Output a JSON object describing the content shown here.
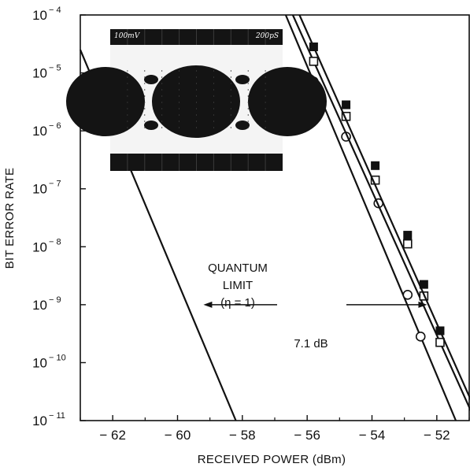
{
  "chart_data": {
    "type": "line",
    "xlabel": "RECEIVED POWER (dBm)",
    "ylabel": "BIT ERROR RATE",
    "xlim": [
      -63,
      -51
    ],
    "ylim_log10": [
      -11,
      -4
    ],
    "y_scale": "log",
    "x_ticks": [
      "− 62",
      "− 60",
      "− 58",
      "− 56",
      "− 54",
      "− 52"
    ],
    "x_tick_values": [
      -62,
      -60,
      -58,
      -56,
      -54,
      -52
    ],
    "y_tick_exponents": [
      -4,
      -5,
      -6,
      -7,
      -8,
      -9,
      -10,
      -11
    ],
    "y_tick_base": "10",
    "y_tick_labels": [
      "− 4",
      "− 5",
      "− 6",
      "− 7",
      "− 8",
      "− 9",
      "− 10",
      "− 11"
    ],
    "grid": false,
    "series": [
      {
        "marker": "line",
        "x": [
          -63,
          -58.2
        ],
        "log10_ber": [
          -4.6,
          -11
        ]
      },
      {
        "marker": "open-circle",
        "x": [
          -55.8,
          -54.8,
          -53.8,
          -52.9,
          -52.5
        ],
        "log10_ber": [
          -5.15,
          -6.1,
          -7.25,
          -8.83,
          -9.55
        ]
      },
      {
        "marker": "open-square",
        "x": [
          -55.8,
          -54.8,
          -53.9,
          -52.9,
          -52.4,
          -51.9
        ],
        "log10_ber": [
          -4.8,
          -5.75,
          -6.85,
          -7.95,
          -8.85,
          -9.65
        ]
      },
      {
        "marker": "filled-square",
        "x": [
          -55.8,
          -54.8,
          -53.9,
          -52.9,
          -52.4,
          -51.9
        ],
        "log10_ber": [
          -4.55,
          -5.55,
          -6.6,
          -7.8,
          -8.65,
          -9.45
        ]
      }
    ],
    "annotations": {
      "quantum_limit": [
        "QUANTUM",
        "LIMIT",
        "(η = 1)"
      ],
      "arrow_label": "7.1 dB",
      "arrow_from_x": -59.2,
      "arrow_to_x": -52.3,
      "arrow_log10_ber": -9
    },
    "inset": {
      "label_left": "100mV",
      "label_right": "200pS",
      "description": "eye"
    }
  }
}
